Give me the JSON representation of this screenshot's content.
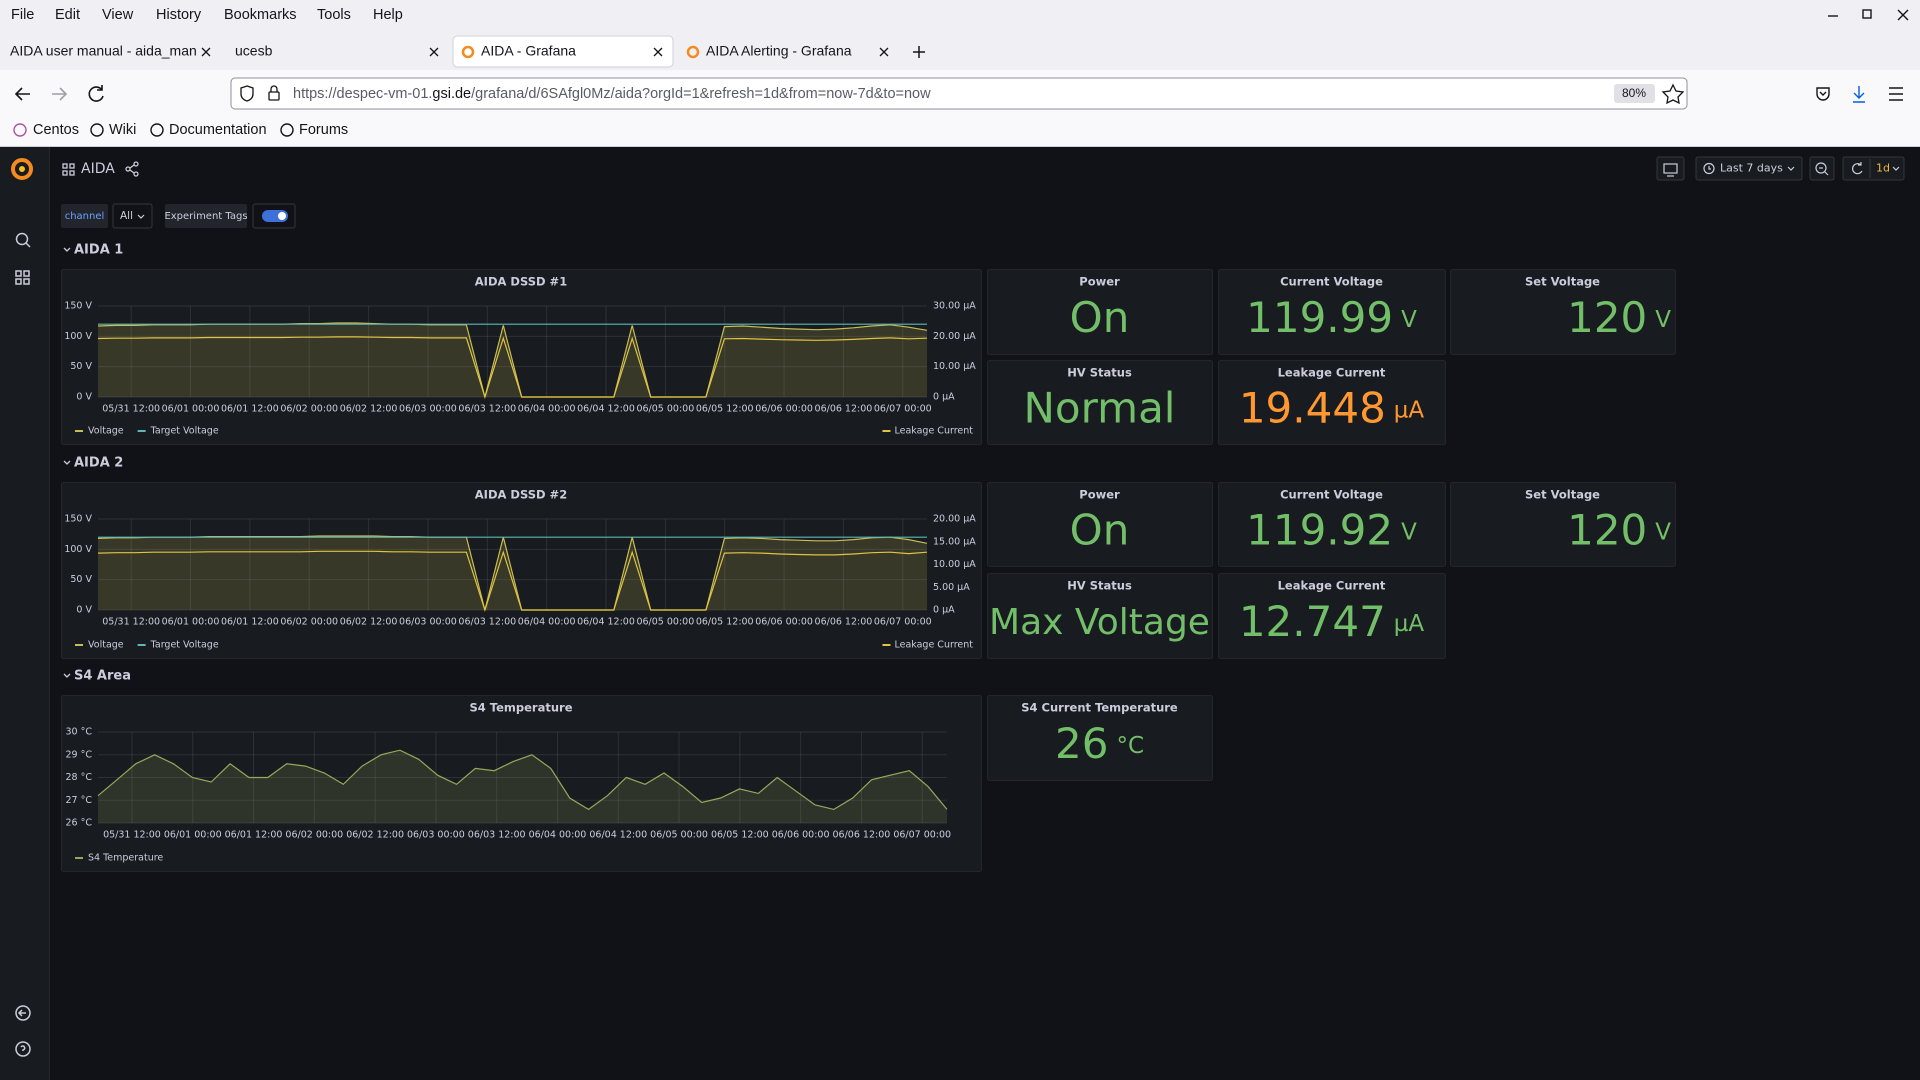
{
  "menu": [
    "File",
    "Edit",
    "View",
    "History",
    "Bookmarks",
    "Tools",
    "Help"
  ],
  "tabs": [
    {
      "title": "AIDA user manual - aida_man"
    },
    {
      "title": "ucesb"
    },
    {
      "title": "AIDA - Grafana"
    },
    {
      "title": "AIDA Alerting - Grafana"
    }
  ],
  "url": {
    "prefix": "https://despec-vm-01.",
    "domain": "gsi.de",
    "path": "/grafana/d/6SAfgl0Mz/aida?orgId=1&refresh=1d&from=now-7d&to=now"
  },
  "zoom": "80%",
  "bookmarks": [
    "Centos",
    "Wiki",
    "Documentation",
    "Forums"
  ],
  "dashboard": {
    "title": "AIDA",
    "time_range": "Last 7 days",
    "refresh": "1d",
    "variables": {
      "channel": "channel",
      "channel_value": "All",
      "tags": "Experiment Tags"
    },
    "rows": [
      {
        "title": "AIDA 1",
        "panels": [
          {
            "type": "line",
            "title": "AIDA DSSD #1",
            "xticks": [
              "05/31 12:00",
              "06/01 00:00",
              "06/01 12:00",
              "06/02 00:00",
              "06/02 12:00",
              "06/03 00:00",
              "06/03 12:00",
              "06/04 00:00",
              "06/04 12:00",
              "06/05 00:00",
              "06/05 12:00",
              "06/06 00:00",
              "06/06 12:00",
              "06/07 00:00"
            ],
            "ylim": [
              0,
              150
            ],
            "yticks": [
              {
                "value": 0,
                "label": "0 V"
              },
              {
                "value": 50,
                "label": "50 V"
              },
              {
                "value": 100,
                "label": "100 V"
              },
              {
                "value": 150,
                "label": "150 V"
              }
            ],
            "y2lim": [
              0,
              30
            ],
            "y2ticks": [
              {
                "value": 0,
                "label": "0 µA"
              },
              {
                "value": 10,
                "label": "10.00 µA"
              },
              {
                "value": 20,
                "label": "20.00 µA"
              },
              {
                "value": 30,
                "label": "30.00 µA"
              }
            ],
            "series": [
              {
                "name": "Voltage",
                "color": "#c9bd55",
                "fill": true,
                "values": [
                  117,
                  118,
                  118,
                  119,
                  119,
                  119,
                  120,
                  120,
                  120,
                  120,
                  120,
                  121,
                  121,
                  122,
                  122,
                  121,
                  120,
                  120,
                  119,
                  119,
                  119,
                  0,
                  118,
                  0,
                  0,
                  0,
                  0,
                  0,
                  0,
                  118,
                  0,
                  0,
                  0,
                  0,
                  116,
                  117,
                  115,
                  113,
                  112,
                  111,
                  112,
                  114,
                  117,
                  119,
                  115,
                  110
                ]
              },
              {
                "name": "Target Voltage",
                "color": "#5fb8b8",
                "values": [
                  120,
                  120,
                  120,
                  120,
                  120,
                  120,
                  120,
                  120,
                  120,
                  120,
                  120,
                  120,
                  120,
                  120,
                  120,
                  120,
                  120,
                  120,
                  120,
                  120,
                  120,
                  120,
                  120,
                  120,
                  120,
                  120,
                  120,
                  120,
                  120,
                  120,
                  120,
                  120,
                  120,
                  120,
                  120,
                  120,
                  120,
                  120,
                  120,
                  120,
                  120,
                  120,
                  120,
                  120,
                  120,
                  120
                ]
              },
              {
                "name": "Leakage Current",
                "color": "#e0c341",
                "axis": "y2",
                "values": [
                  19.3,
                  19.4,
                  19.4,
                  19.5,
                  19.5,
                  19.5,
                  19.6,
                  19.6,
                  19.6,
                  19.6,
                  19.6,
                  19.7,
                  19.7,
                  19.8,
                  19.8,
                  19.7,
                  19.6,
                  19.6,
                  19.5,
                  19.5,
                  19.5,
                  0,
                  19.4,
                  0,
                  0,
                  0,
                  0,
                  0,
                  0,
                  19.3,
                  0,
                  0,
                  0,
                  0,
                  19.2,
                  19.3,
                  19.1,
                  18.9,
                  18.8,
                  18.7,
                  18.8,
                  19.0,
                  19.3,
                  19.5,
                  19.2,
                  19.4
                ]
              }
            ]
          },
          {
            "type": "stat",
            "title": "Power",
            "value": "On",
            "color": "#73bf69"
          },
          {
            "type": "stat",
            "title": "Current Voltage",
            "value": 119.99,
            "unit": "V",
            "color": "#73bf69"
          },
          {
            "type": "stat",
            "title": "Set Voltage",
            "value": 120,
            "unit": "V",
            "color": "#73bf69"
          },
          {
            "type": "stat",
            "title": "HV Status",
            "value": "Normal",
            "color": "#73bf69"
          },
          {
            "type": "stat",
            "title": "Leakage Current",
            "value": 19.448,
            "unit": "µA",
            "color": "#ff9830"
          }
        ]
      },
      {
        "title": "AIDA 2",
        "panels": [
          {
            "type": "line",
            "title": "AIDA DSSD #2",
            "xticks": [
              "05/31 12:00",
              "06/01 00:00",
              "06/01 12:00",
              "06/02 00:00",
              "06/02 12:00",
              "06/03 00:00",
              "06/03 12:00",
              "06/04 00:00",
              "06/04 12:00",
              "06/05 00:00",
              "06/05 12:00",
              "06/06 00:00",
              "06/06 12:00",
              "06/07 00:00"
            ],
            "ylim": [
              0,
              150
            ],
            "yticks": [
              {
                "value": 0,
                "label": "0 V"
              },
              {
                "value": 50,
                "label": "50 V"
              },
              {
                "value": 100,
                "label": "100 V"
              },
              {
                "value": 150,
                "label": "150 V"
              }
            ],
            "y2lim": [
              0,
              20
            ],
            "y2ticks": [
              {
                "value": 0,
                "label": "0 µA"
              },
              {
                "value": 5,
                "label": "5.00 µA"
              },
              {
                "value": 10,
                "label": "10.00 µA"
              },
              {
                "value": 15,
                "label": "15.00 µA"
              },
              {
                "value": 20,
                "label": "20.00 µA"
              }
            ],
            "series": [
              {
                "name": "Voltage",
                "color": "#c9bd55",
                "fill": true,
                "values": [
                  118,
                  119,
                  119,
                  120,
                  120,
                  120,
                  121,
                  121,
                  121,
                  121,
                  121,
                  121,
                  122,
                  122,
                  122,
                  122,
                  121,
                  121,
                  120,
                  120,
                  120,
                  0,
                  120,
                  0,
                  0,
                  0,
                  0,
                  0,
                  0,
                  120,
                  0,
                  0,
                  0,
                  0,
                  118,
                  119,
                  118,
                  116,
                  115,
                  114,
                  114,
                  116,
                  119,
                  120,
                  116,
                  110
                ]
              },
              {
                "name": "Target Voltage",
                "color": "#5fb8b8",
                "values": [
                  120,
                  120,
                  120,
                  120,
                  120,
                  120,
                  120,
                  120,
                  120,
                  120,
                  120,
                  120,
                  120,
                  120,
                  120,
                  120,
                  120,
                  120,
                  120,
                  120,
                  120,
                  120,
                  120,
                  120,
                  120,
                  120,
                  120,
                  120,
                  120,
                  120,
                  120,
                  120,
                  120,
                  120,
                  120,
                  120,
                  120,
                  120,
                  120,
                  120,
                  120,
                  120,
                  120,
                  120,
                  120,
                  120
                ]
              },
              {
                "name": "Leakage Current",
                "color": "#e0c341",
                "axis": "y2",
                "values": [
                  12.5,
                  12.6,
                  12.6,
                  12.7,
                  12.7,
                  12.7,
                  12.8,
                  12.8,
                  12.8,
                  12.8,
                  12.8,
                  12.8,
                  12.9,
                  12.9,
                  12.9,
                  12.9,
                  12.8,
                  12.8,
                  12.7,
                  12.7,
                  12.7,
                  0,
                  12.7,
                  0,
                  0,
                  0,
                  0,
                  0,
                  0,
                  12.7,
                  0,
                  0,
                  0,
                  0,
                  12.5,
                  12.6,
                  12.5,
                  12.3,
                  12.2,
                  12.1,
                  12.1,
                  12.3,
                  12.6,
                  12.7,
                  12.4,
                  12.7
                ]
              }
            ]
          },
          {
            "type": "stat",
            "title": "Power",
            "value": "On",
            "color": "#73bf69"
          },
          {
            "type": "stat",
            "title": "Current Voltage",
            "value": 119.92,
            "unit": "V",
            "color": "#73bf69"
          },
          {
            "type": "stat",
            "title": "Set Voltage",
            "value": 120,
            "unit": "V",
            "color": "#73bf69"
          },
          {
            "type": "stat",
            "title": "HV Status",
            "value": "Max Voltage",
            "color": "#73bf69"
          },
          {
            "type": "stat",
            "title": "Leakage Current",
            "value": 12.747,
            "unit": "µA",
            "color": "#73bf69"
          }
        ]
      },
      {
        "title": "S4 Area",
        "panels": [
          {
            "type": "line",
            "title": "S4 Temperature",
            "xticks": [
              "05/31 12:00",
              "06/01 00:00",
              "06/01 12:00",
              "06/02 00:00",
              "06/02 12:00",
              "06/03 00:00",
              "06/03 12:00",
              "06/04 00:00",
              "06/04 12:00",
              "06/05 00:00",
              "06/05 12:00",
              "06/06 00:00",
              "06/06 12:00",
              "06/07 00:00"
            ],
            "ylim": [
              26,
              30
            ],
            "yticks": [
              {
                "value": 26,
                "label": "26 °C"
              },
              {
                "value": 27,
                "label": "27 °C"
              },
              {
                "value": 28,
                "label": "28 °C"
              },
              {
                "value": 29,
                "label": "29 °C"
              },
              {
                "value": 30,
                "label": "30 °C"
              }
            ],
            "series": [
              {
                "name": "S4 Temperature",
                "color": "#96a85a",
                "fill": true,
                "values": [
                  27.2,
                  27.9,
                  28.6,
                  29.0,
                  28.6,
                  28.0,
                  27.8,
                  28.6,
                  28.0,
                  28.0,
                  28.6,
                  28.5,
                  28.2,
                  27.7,
                  28.5,
                  29.0,
                  29.2,
                  28.8,
                  28.1,
                  27.7,
                  28.4,
                  28.3,
                  28.7,
                  29.0,
                  28.4,
                  27.1,
                  26.6,
                  27.2,
                  28.0,
                  27.7,
                  28.2,
                  27.6,
                  26.9,
                  27.1,
                  27.5,
                  27.3,
                  28.0,
                  27.4,
                  26.8,
                  26.6,
                  27.1,
                  27.9,
                  28.1,
                  28.3,
                  27.6,
                  26.6
                ]
              }
            ]
          },
          {
            "type": "stat",
            "title": "S4 Current Temperature",
            "value": 26,
            "unit": "°C",
            "color": "#73bf69"
          }
        ]
      }
    ]
  }
}
